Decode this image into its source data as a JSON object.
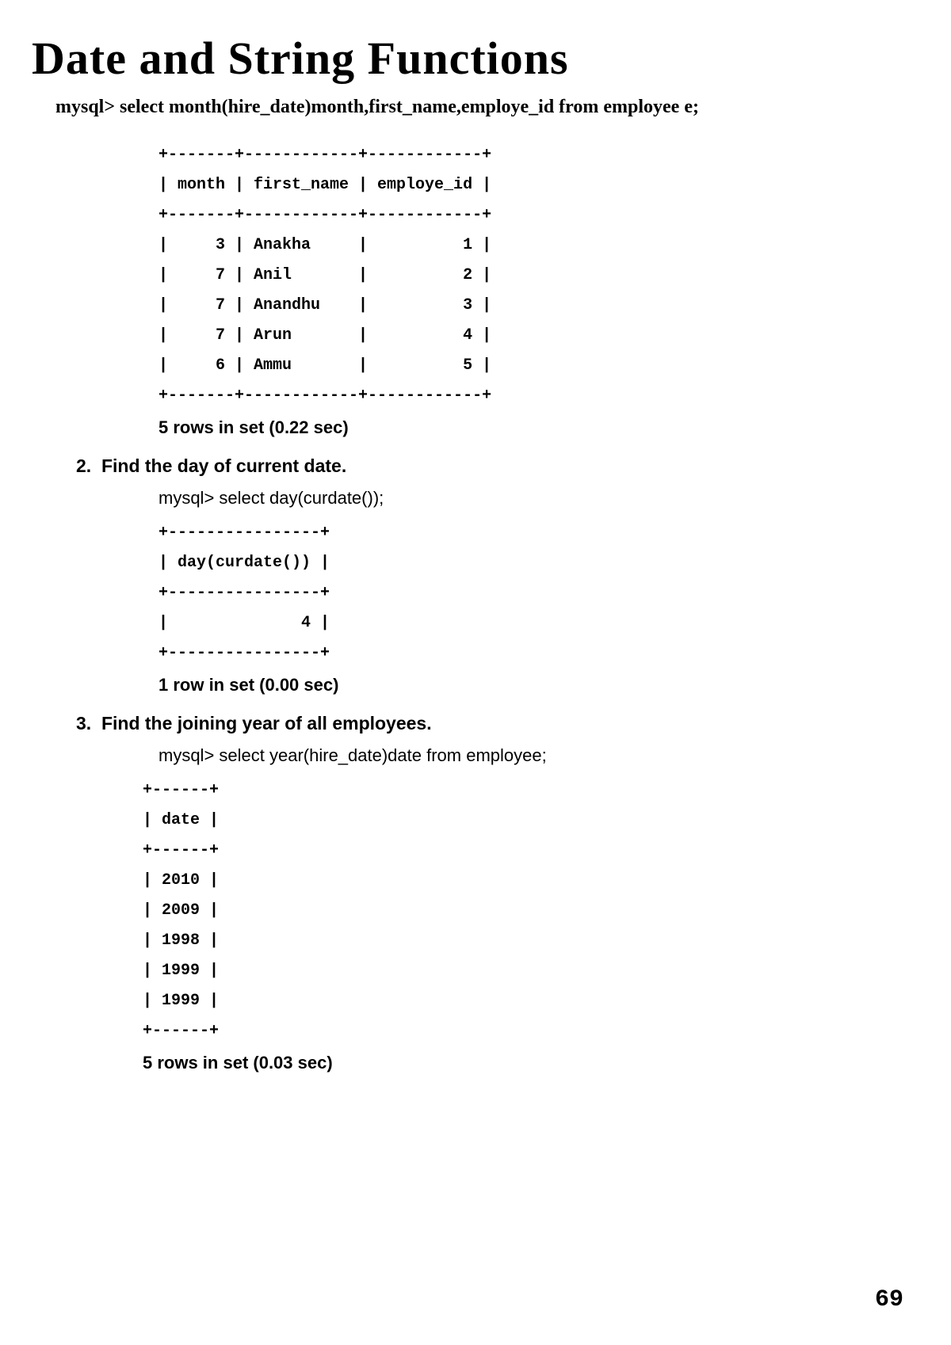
{
  "title": "Date and String Functions",
  "intro_query": "mysql> select month(hire_date)month,first_name,employe_id from employee e;",
  "table1": {
    "border_top": "+-------+------------+------------+",
    "header": "| month | first_name | employe_id |",
    "border_mid": "+-------+------------+------------+",
    "rows": [
      "|     3 | Anakha     |          1 |",
      "|     7 | Anil       |          2 |",
      "|     7 | Anandhu    |          3 |",
      "|     7 | Arun       |          4 |",
      "|     6 | Ammu       |          5 |"
    ],
    "border_bot": "+-------+------------+------------+",
    "result": "5 rows in set (0.22 sec)"
  },
  "q2": {
    "num": "2.",
    "text": "Find the  day of current date.",
    "query": "mysql> select day(curdate());",
    "table": {
      "border": "+----------------+",
      "header": "| day(curdate()) |",
      "rows": [
        "|              4 |"
      ]
    },
    "result": "1 row in set (0.00 sec)"
  },
  "q3": {
    "num": "3.",
    "text": "Find the joining year of all employees.",
    "query": "mysql> select year(hire_date)date from employee;",
    "table": {
      "border": "+------+",
      "header": "| date |",
      "rows": [
        "| 2010 |",
        "| 2009 |",
        "| 1998 |",
        "| 1999 |",
        "| 1999 |"
      ]
    },
    "result": "5 rows in set (0.03 sec)"
  },
  "page_number": "69"
}
